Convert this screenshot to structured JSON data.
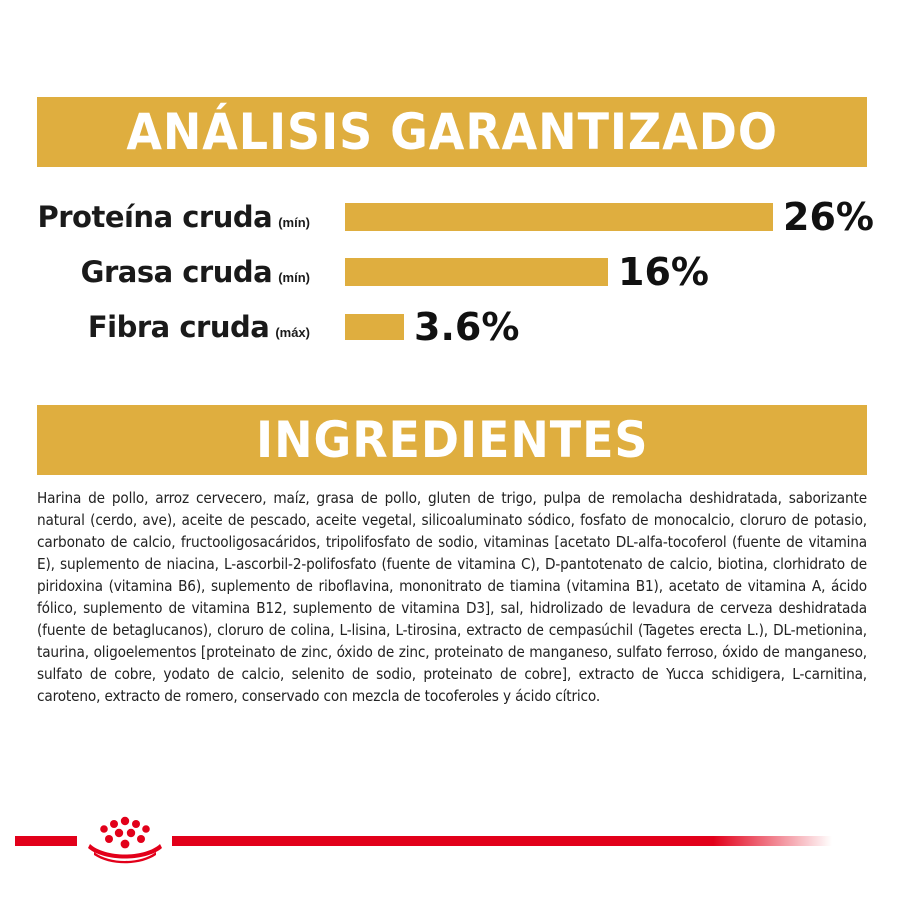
{
  "analysis": {
    "title": "ANÁLISIS GARANTIZADO",
    "rows": [
      {
        "name": "Proteína cruda",
        "qualifier": "(mín)",
        "value_label": "26%",
        "percent": 26
      },
      {
        "name": "Grasa cruda",
        "qualifier": "(mín)",
        "value_label": "16%",
        "percent": 16
      },
      {
        "name": "Fibra cruda",
        "qualifier": "(máx)",
        "value_label": "3.6%",
        "percent": 3.6
      }
    ]
  },
  "ingredients": {
    "title": "INGREDIENTES",
    "text": "Harina de pollo, arroz cervecero, maíz, grasa de pollo, gluten de trigo, pulpa de remolacha deshidratada, saborizante natural (cerdo, ave), aceite de pescado, aceite vegetal, silicoaluminato sódico, fosfato de monocalcio, cloruro de potasio, carbonato de calcio, fructooligosacáridos, tripolifosfato de sodio, vitaminas [acetato DL-alfa-tocoferol (fuente de vitamina E), suplemento de niacina, L-ascorbil-2-polifosfato (fuente de vitamina C), D-pantotenato de calcio, biotina, clorhidrato de piridoxina (vitamina B6), suplemento de riboflavina, mononitrato de tiamina (vitamina B1), acetato de vitamina A, ácido fólico, suplemento de vitamina B12, suplemento de vitamina D3], sal, hidrolizado de levadura de cerveza deshidratada (fuente de betaglucanos), cloruro de colina, L-lisina, L-tirosina, extracto de cempasúchil (Tagetes erecta L.), DL-metionina, taurina, oligoelementos [proteinato de zinc, óxido de zinc, proteinato de manganeso, sulfato ferroso, óxido de manganeso, sulfato de cobre, yodato de calcio, selenito de sodio, proteinato de cobre], extracto de Yucca schidigera, L-carnitina, caroteno, extracto de romero, conservado con mezcla de tocoferoles y ácido cítrico."
  },
  "colors": {
    "accent": "#DFAE3F",
    "brand_red": "#E2001A",
    "text": "#1a1a1a"
  },
  "icons": {
    "brand": "crown-logo-icon"
  }
}
